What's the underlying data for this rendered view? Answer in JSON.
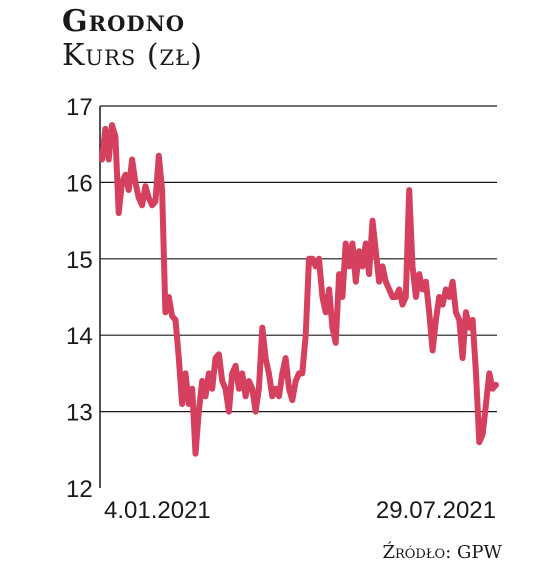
{
  "header": {
    "title": "Grodno",
    "subtitle": "Kurs (zł)"
  },
  "source": "Źródło: GPW",
  "chart_data": {
    "type": "line",
    "title": "Grodno",
    "ylabel": "Kurs (zł)",
    "xlabel": "",
    "ylim": [
      12,
      17
    ],
    "yticks": [
      12,
      13,
      14,
      15,
      16,
      17
    ],
    "grid": "horizontal",
    "legend": "none",
    "x_tick_labels": [
      "4.01.2021",
      "29.07.2021"
    ],
    "color": "#d6405f",
    "series": [
      {
        "values": [
          16.3,
          16.7,
          16.3,
          16.75,
          16.6,
          15.6,
          16.0,
          16.1,
          15.9,
          16.3,
          16.0,
          15.8,
          15.7,
          15.95,
          15.8,
          15.7,
          15.75,
          16.35,
          15.9,
          14.3,
          14.5,
          14.25,
          14.2,
          13.7,
          13.1,
          13.5,
          13.1,
          13.3,
          12.45,
          13.0,
          13.4,
          13.2,
          13.5,
          13.3,
          13.7,
          13.75,
          13.4,
          13.3,
          13.0,
          13.5,
          13.6,
          13.3,
          13.5,
          13.2,
          13.4,
          13.3,
          13.0,
          13.3,
          14.1,
          13.7,
          13.5,
          13.2,
          13.3,
          13.2,
          13.5,
          13.7,
          13.3,
          13.15,
          13.4,
          13.5,
          13.5,
          14.0,
          15.0,
          15.0,
          14.9,
          15.0,
          14.5,
          14.3,
          14.6,
          14.1,
          13.9,
          14.8,
          14.5,
          15.2,
          14.9,
          15.2,
          14.7,
          15.1,
          14.9,
          15.2,
          14.8,
          15.5,
          15.1,
          14.7,
          14.9,
          14.7,
          14.6,
          14.5,
          14.5,
          14.6,
          14.4,
          14.5,
          15.9,
          14.9,
          14.5,
          14.8,
          14.6,
          14.7,
          14.3,
          13.8,
          14.2,
          14.5,
          14.4,
          14.6,
          14.5,
          14.7,
          14.3,
          14.2,
          13.7,
          14.3,
          14.1,
          14.2,
          13.5,
          12.6,
          12.7,
          13.1,
          13.5,
          13.3,
          13.35
        ]
      }
    ]
  }
}
